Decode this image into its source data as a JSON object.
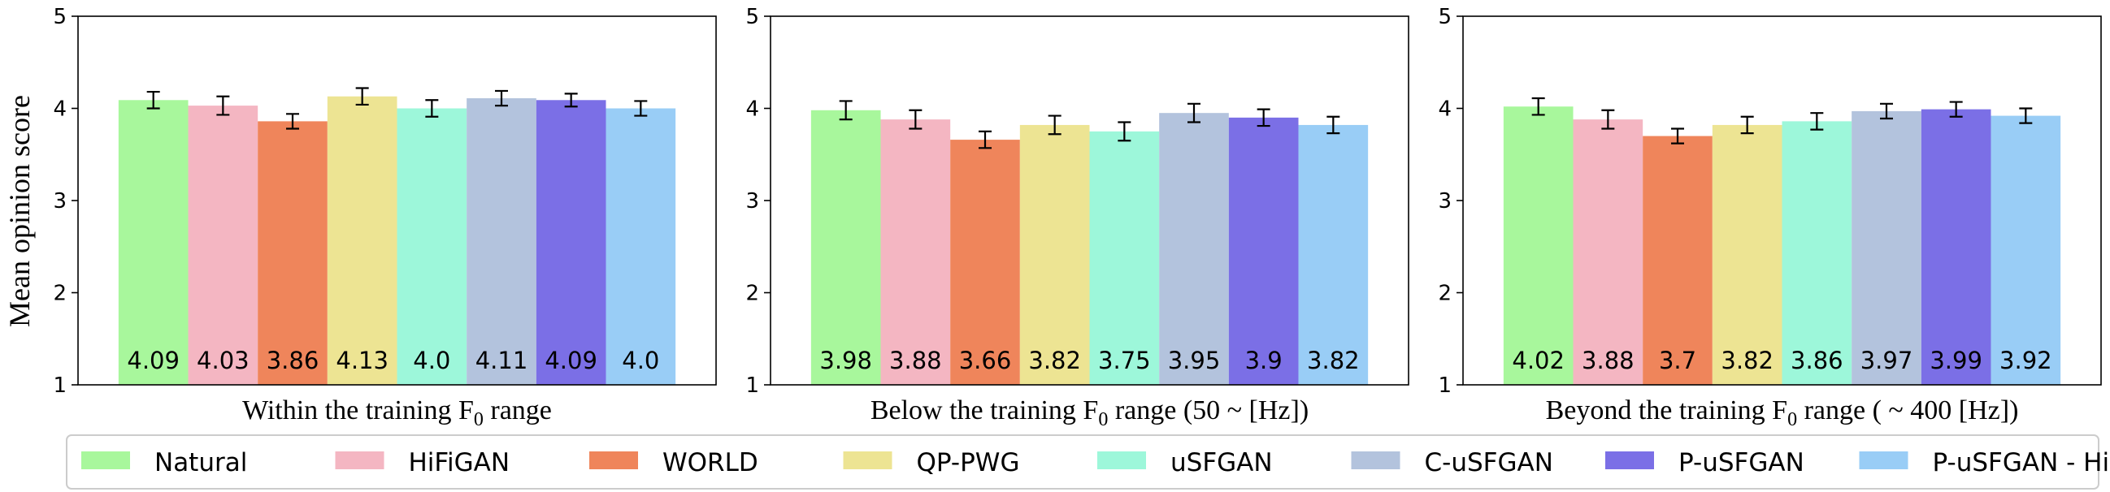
{
  "chart_data": {
    "type": "bar",
    "ylabel": "Mean opinion score",
    "ylim": [
      1,
      5
    ],
    "yticks": [
      "1",
      "2",
      "3",
      "4",
      "5"
    ],
    "grid": false,
    "legend_position": "bottom",
    "series": [
      {
        "name": "Natural",
        "color": "#a8f79c"
      },
      {
        "name": "HiFiGAN",
        "color": "#f4b6c2"
      },
      {
        "name": "WORLD",
        "color": "#ef855b"
      },
      {
        "name": "QP-PWG",
        "color": "#ede493"
      },
      {
        "name": "uSFGAN",
        "color": "#9df7da"
      },
      {
        "name": "C-uSFGAN",
        "color": "#b3c3dd"
      },
      {
        "name": "P-uSFGAN",
        "color": "#7b6fe6"
      },
      {
        "name": "P-uSFGAN  - HiFi-D",
        "color": "#99cdf6"
      }
    ],
    "panels": [
      {
        "xlabel_main": "Within the training F",
        "xlabel_sub": "0",
        "xlabel_rest": " range",
        "values": [
          4.09,
          4.03,
          3.86,
          4.13,
          4.0,
          4.11,
          4.09,
          4.0
        ],
        "value_labels": [
          "4.09",
          "4.03",
          "3.86",
          "4.13",
          "4.0",
          "4.11",
          "4.09",
          "4.0"
        ],
        "errors": [
          0.09,
          0.1,
          0.08,
          0.09,
          0.09,
          0.08,
          0.07,
          0.08
        ]
      },
      {
        "xlabel_main": "Below the training F",
        "xlabel_sub": "0",
        "xlabel_rest": " range (50 ~ [Hz])",
        "values": [
          3.98,
          3.88,
          3.66,
          3.82,
          3.75,
          3.95,
          3.9,
          3.82
        ],
        "value_labels": [
          "3.98",
          "3.88",
          "3.66",
          "3.82",
          "3.75",
          "3.95",
          "3.9",
          "3.82"
        ],
        "errors": [
          0.1,
          0.1,
          0.09,
          0.1,
          0.1,
          0.1,
          0.09,
          0.09
        ]
      },
      {
        "xlabel_main": "Beyond the training F",
        "xlabel_sub": "0",
        "xlabel_rest": " range ( ~ 400 [Hz])",
        "values": [
          4.02,
          3.88,
          3.7,
          3.82,
          3.86,
          3.97,
          3.99,
          3.92
        ],
        "value_labels": [
          "4.02",
          "3.88",
          "3.7",
          "3.82",
          "3.86",
          "3.97",
          "3.99",
          "3.92"
        ],
        "errors": [
          0.09,
          0.1,
          0.08,
          0.09,
          0.09,
          0.08,
          0.08,
          0.08
        ]
      }
    ]
  }
}
